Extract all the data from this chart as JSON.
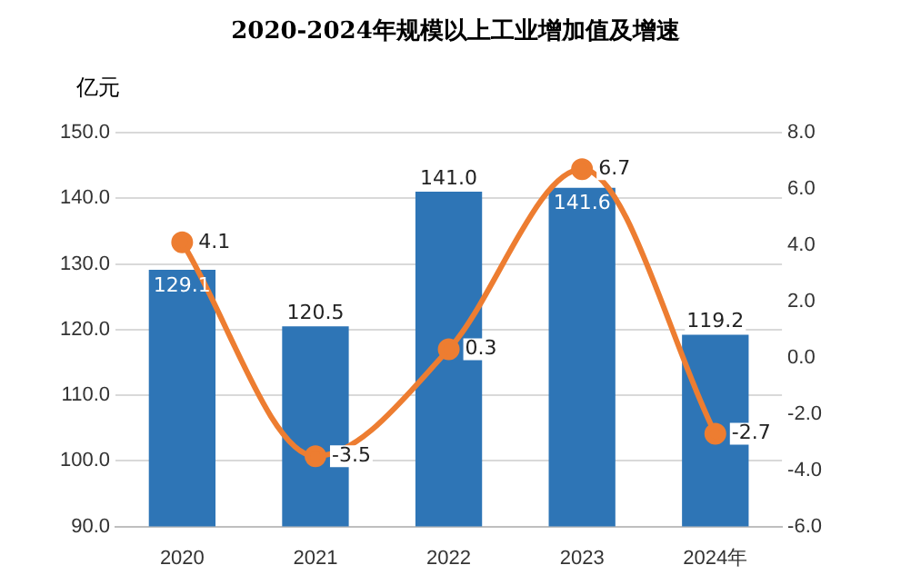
{
  "chart_data": {
    "type": "bar",
    "title": "2020-2024年规模以上工业增加值及增速",
    "ylabel": "亿元",
    "categories": [
      "2020",
      "2021",
      "2022",
      "2023",
      "2024年"
    ],
    "series": [
      {
        "color": "#2e75b6",
        "values": [
          129.1,
          120.5,
          141.0,
          141.6,
          119.2
        ],
        "value_labels": [
          "129.1",
          "120.5",
          "141.0",
          "141.6",
          "119.2"
        ]
      },
      {
        "type": "line",
        "axis": "y2",
        "color": "#ed7d31",
        "values": [
          4.1,
          -3.5,
          0.3,
          6.7,
          -2.7
        ],
        "value_labels": [
          "4.1",
          "-3.5",
          "0.3",
          "6.7",
          "-2.7"
        ]
      }
    ],
    "ylim": [
      90,
      150
    ],
    "yticks": [
      {
        "value": 90,
        "label": "90.0"
      },
      {
        "value": 100,
        "label": "100.0"
      },
      {
        "value": 110,
        "label": "110.0"
      },
      {
        "value": 120,
        "label": "120.0"
      },
      {
        "value": 130,
        "label": "130.0"
      },
      {
        "value": 140,
        "label": "140.0"
      },
      {
        "value": 150,
        "label": "150.0"
      }
    ],
    "y2lim": [
      -6,
      8
    ],
    "y2ticks": [
      {
        "value": -6,
        "label": "-6.0"
      },
      {
        "value": -4,
        "label": "-4.0"
      },
      {
        "value": -2,
        "label": "-2.0"
      },
      {
        "value": 0,
        "label": "0.0"
      },
      {
        "value": 2,
        "label": "2.0"
      },
      {
        "value": 4,
        "label": "4.0"
      },
      {
        "value": 6,
        "label": "6.0"
      },
      {
        "value": 8,
        "label": "8.0"
      }
    ],
    "grid": "y",
    "legend": false,
    "marker": "circle",
    "line_style": "solid"
  }
}
